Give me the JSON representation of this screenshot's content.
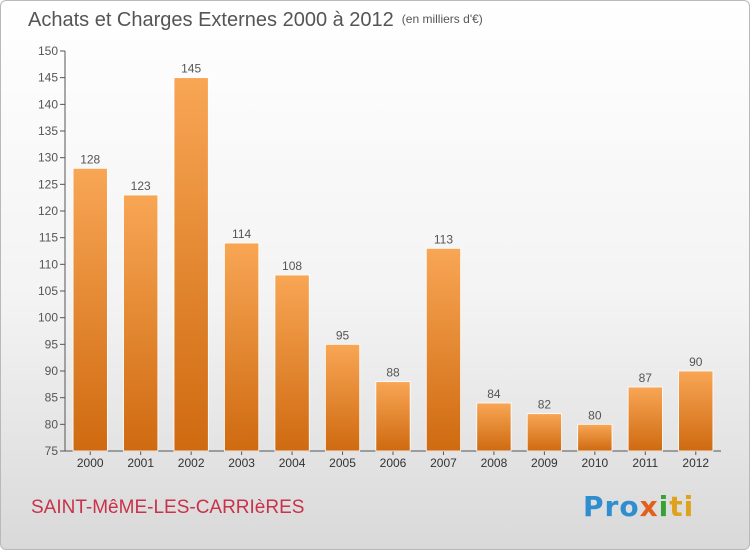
{
  "title": "Achats et Charges Externes 2000 à 2012",
  "subtitle": "(en milliers d'€)",
  "commune": "SAINT-MêME-LES-CARRIèRES",
  "logo": {
    "p1": "Pro",
    "p2": "x",
    "p3": "i",
    "p4": "ti"
  },
  "colors": {
    "bar_light": "#f8a655",
    "bar_dark": "#cf6a10",
    "text": "#555555",
    "commune": "#c8324a"
  },
  "chart_data": {
    "type": "bar",
    "title": "Achats et Charges Externes 2000 à 2012",
    "subtitle": "(en milliers d'€)",
    "categories": [
      "2000",
      "2001",
      "2002",
      "2003",
      "2004",
      "2005",
      "2006",
      "2007",
      "2008",
      "2009",
      "2010",
      "2011",
      "2012"
    ],
    "values": [
      128,
      123,
      145,
      114,
      108,
      95,
      88,
      113,
      84,
      82,
      80,
      87,
      90
    ],
    "ylim": [
      75,
      150
    ],
    "yticks": [
      75,
      80,
      85,
      90,
      95,
      100,
      105,
      110,
      115,
      120,
      125,
      130,
      135,
      140,
      145,
      150
    ],
    "grid": false,
    "data_labels": true
  }
}
